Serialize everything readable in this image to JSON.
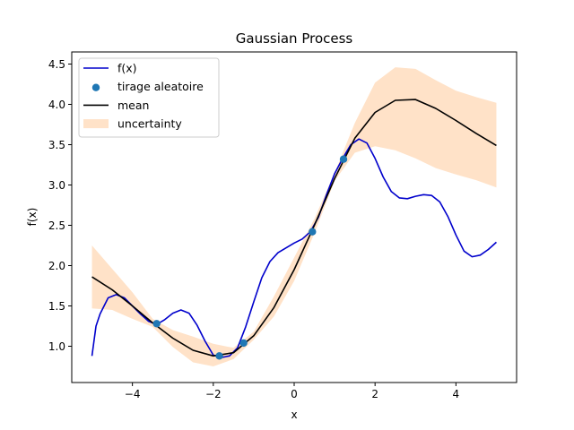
{
  "chart_data": {
    "type": "line",
    "title": "Gaussian Process",
    "xlabel": "x",
    "ylabel": "f(x)",
    "xlim": [
      -5.5,
      5.5
    ],
    "ylim": [
      0.55,
      4.65
    ],
    "xticks": [
      -4,
      -2,
      0,
      2,
      4
    ],
    "xtick_labels": [
      "−4",
      "−2",
      "0",
      "2",
      "4"
    ],
    "yticks": [
      1.0,
      1.5,
      2.0,
      2.5,
      3.0,
      3.5,
      4.0,
      4.5
    ],
    "ytick_labels": [
      "1.0",
      "1.5",
      "2.0",
      "2.5",
      "3.0",
      "3.5",
      "4.0",
      "4.5"
    ],
    "grid": false,
    "legend_position": "top-left",
    "series": [
      {
        "name": "f(x)",
        "type": "line",
        "color": "#0000cc",
        "x": [
          -5.0,
          -4.9,
          -4.8,
          -4.6,
          -4.4,
          -4.2,
          -4.0,
          -3.8,
          -3.6,
          -3.4,
          -3.2,
          -3.0,
          -2.8,
          -2.6,
          -2.4,
          -2.2,
          -2.0,
          -1.8,
          -1.6,
          -1.4,
          -1.2,
          -1.0,
          -0.8,
          -0.6,
          -0.4,
          -0.2,
          0.0,
          0.2,
          0.4,
          0.6,
          0.8,
          1.0,
          1.2,
          1.4,
          1.6,
          1.8,
          2.0,
          2.2,
          2.4,
          2.6,
          2.8,
          3.0,
          3.2,
          3.4,
          3.6,
          3.8,
          4.0,
          4.2,
          4.4,
          4.6,
          4.8,
          5.0
        ],
        "y": [
          0.88,
          1.25,
          1.4,
          1.6,
          1.64,
          1.6,
          1.5,
          1.4,
          1.31,
          1.27,
          1.33,
          1.41,
          1.45,
          1.41,
          1.26,
          1.06,
          0.89,
          0.86,
          0.88,
          0.98,
          1.24,
          1.55,
          1.85,
          2.05,
          2.16,
          2.22,
          2.28,
          2.33,
          2.42,
          2.6,
          2.88,
          3.14,
          3.33,
          3.5,
          3.57,
          3.52,
          3.33,
          3.1,
          2.92,
          2.84,
          2.83,
          2.86,
          2.88,
          2.87,
          2.79,
          2.61,
          2.38,
          2.18,
          2.11,
          2.13,
          2.2,
          2.29
        ]
      },
      {
        "name": "tirage aleatoire",
        "type": "scatter",
        "color": "#1f77b4",
        "x": [
          -3.4,
          -1.85,
          -1.25,
          0.45,
          1.22
        ],
        "y": [
          1.28,
          0.88,
          1.04,
          2.42,
          3.32
        ]
      },
      {
        "name": "mean",
        "type": "line",
        "color": "#000000",
        "x": [
          -5.0,
          -4.5,
          -4.0,
          -3.5,
          -3.0,
          -2.5,
          -2.0,
          -1.5,
          -1.0,
          -0.5,
          0.0,
          0.5,
          1.0,
          1.5,
          2.0,
          2.5,
          3.0,
          3.5,
          4.0,
          4.5,
          5.0
        ],
        "y": [
          1.86,
          1.7,
          1.5,
          1.29,
          1.1,
          0.95,
          0.88,
          0.92,
          1.13,
          1.48,
          1.95,
          2.5,
          3.08,
          3.58,
          3.9,
          4.05,
          4.06,
          3.95,
          3.8,
          3.64,
          3.49
        ]
      },
      {
        "name": "uncertainty",
        "type": "area",
        "color": "#ffe2c8",
        "x": [
          -5.0,
          -4.5,
          -4.0,
          -3.5,
          -3.0,
          -2.5,
          -2.0,
          -1.5,
          -1.0,
          -0.5,
          0.0,
          0.5,
          1.0,
          1.5,
          2.0,
          2.5,
          3.0,
          3.5,
          4.0,
          4.5,
          5.0
        ],
        "y_lower": [
          1.47,
          1.45,
          1.34,
          1.24,
          0.99,
          0.8,
          0.75,
          0.84,
          1.08,
          1.37,
          1.81,
          2.4,
          3.05,
          3.4,
          3.48,
          3.43,
          3.33,
          3.21,
          3.13,
          3.06,
          2.97
        ],
        "y_upper": [
          2.25,
          1.96,
          1.67,
          1.34,
          1.2,
          1.12,
          1.03,
          0.98,
          1.18,
          1.62,
          2.1,
          2.58,
          3.15,
          3.77,
          4.27,
          4.46,
          4.44,
          4.3,
          4.17,
          4.09,
          4.02
        ]
      }
    ]
  }
}
